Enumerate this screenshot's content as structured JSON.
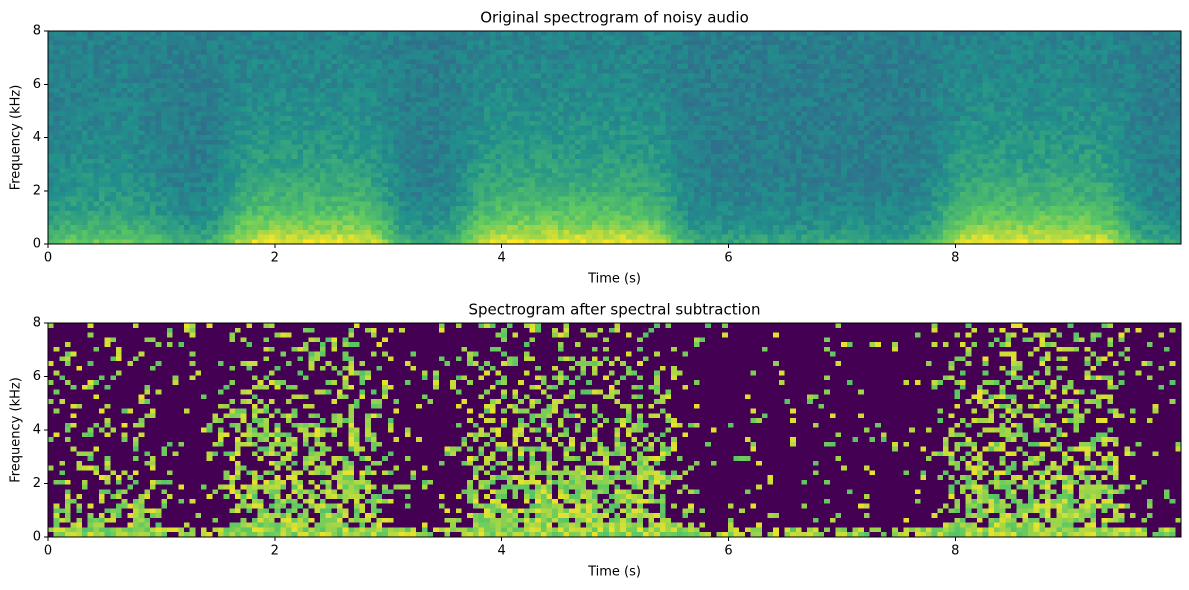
{
  "chart_data": [
    {
      "type": "spectrogram",
      "title": "Original spectrogram of noisy audio",
      "xlabel": "Time (s)",
      "ylabel": "Frequency (kHz)",
      "xlim": [
        0,
        9.99
      ],
      "ylim": [
        0,
        8
      ],
      "xticks": [
        0,
        2,
        4,
        6,
        8
      ],
      "yticks": [
        0,
        2,
        4,
        6,
        8
      ],
      "colormap": "viridis"
    },
    {
      "type": "spectrogram",
      "title": "Spectrogram after spectral subtraction",
      "xlabel": "Time (s)",
      "ylabel": "Frequency (kHz)",
      "xlim": [
        0,
        9.99
      ],
      "ylim": [
        0,
        8
      ],
      "xticks": [
        0,
        2,
        4,
        6,
        8
      ],
      "yticks": [
        0,
        2,
        4,
        6,
        8
      ],
      "colormap": "viridis"
    }
  ]
}
